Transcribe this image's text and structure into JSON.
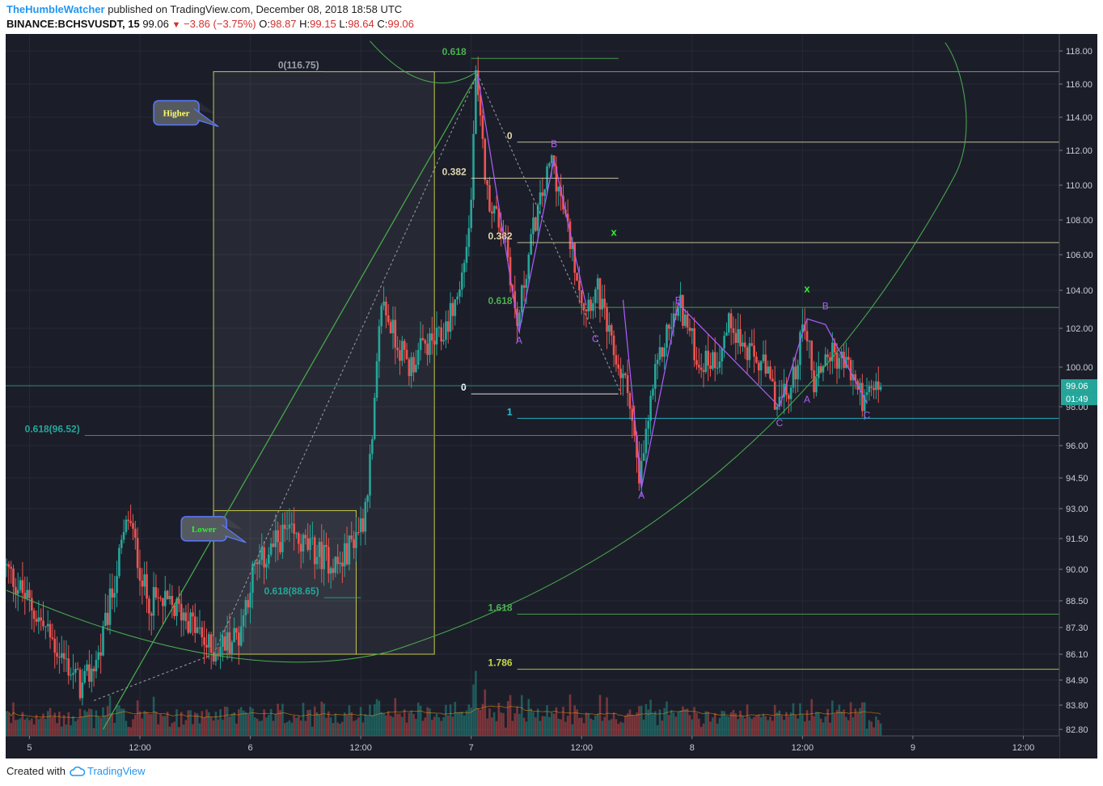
{
  "header": {
    "author": "TheHumbleWatcher",
    "published_text": "published on TradingView.com, December 08, 2018 18:58 UTC",
    "symbol": "BINANCE:BCHSVUSDT, 15",
    "last": "99.06",
    "change": "−3.86 (−3.75%)",
    "o_label": "O:",
    "o": "98.87",
    "h_label": "H:",
    "h": "99.15",
    "l_label": "L:",
    "l": "98.64",
    "c_label": "C:",
    "c": "99.06"
  },
  "footer": {
    "created_with": "Created with",
    "brand": "TradingView"
  },
  "chart_data": {
    "type": "candlestick",
    "colors": {
      "up": "#26a69a",
      "down": "#ef5350",
      "background": "#1b1e29",
      "fib_green": "#4caf50",
      "box": "#c8c84a",
      "pattern": "#b15cff"
    },
    "x_ticks": [
      {
        "label": "5",
        "t": -12
      },
      {
        "label": "12:00",
        "t": 0
      },
      {
        "label": "6",
        "t": 12
      },
      {
        "label": "12:00",
        "t": 24
      },
      {
        "label": "7",
        "t": 36
      },
      {
        "label": "12:00",
        "t": 48
      },
      {
        "label": "8",
        "t": 60
      },
      {
        "label": "12:00",
        "t": 72
      },
      {
        "label": "9",
        "t": 84
      },
      {
        "label": "12:00",
        "t": 96
      }
    ],
    "xlim": [
      -14.5,
      100.5
    ],
    "y_ticks": [
      "118.00",
      "116.00",
      "114.00",
      "112.00",
      "110.00",
      "108.00",
      "106.00",
      "104.00",
      "102.00",
      "100.00",
      "98.00",
      "96.00",
      "94.50",
      "93.00",
      "91.50",
      "90.00",
      "88.50",
      "87.30",
      "86.10",
      "84.90",
      "83.80",
      "82.80"
    ],
    "y_tick_values": [
      118,
      116,
      114,
      112,
      110,
      108,
      106,
      104,
      102,
      100,
      98,
      96,
      94.5,
      93,
      91.5,
      90,
      88.5,
      87.3,
      86.1,
      84.9,
      83.8,
      82.8
    ],
    "last_price": {
      "label": "99.06",
      "countdown": "01:49"
    },
    "anchor_points": [
      {
        "t": -14.5,
        "p": 90.2
      },
      {
        "t": -10,
        "p": 87.2
      },
      {
        "t": -6,
        "p": 84.5
      },
      {
        "t": -4,
        "p": 86.3
      },
      {
        "t": -1,
        "p": 92.6
      },
      {
        "t": 1,
        "p": 88.6
      },
      {
        "t": 5,
        "p": 88.0
      },
      {
        "t": 8,
        "p": 86.2
      },
      {
        "t": 11,
        "p": 87.0
      },
      {
        "t": 12.5,
        "p": 89.8
      },
      {
        "t": 16,
        "p": 91.8
      },
      {
        "t": 19,
        "p": 90.9
      },
      {
        "t": 22,
        "p": 90.2
      },
      {
        "t": 24.5,
        "p": 92.5
      },
      {
        "t": 25.5,
        "p": 96.0
      },
      {
        "t": 26.5,
        "p": 103.5
      },
      {
        "t": 28,
        "p": 101.5
      },
      {
        "t": 29.5,
        "p": 100.0
      },
      {
        "t": 31,
        "p": 101.0
      },
      {
        "t": 33,
        "p": 101.5
      },
      {
        "t": 35,
        "p": 104.0
      },
      {
        "t": 36.2,
        "p": 108.2
      },
      {
        "t": 36.7,
        "p": 116.5
      },
      {
        "t": 38,
        "p": 109.5
      },
      {
        "t": 40,
        "p": 107.0
      },
      {
        "t": 41.2,
        "p": 102.0
      },
      {
        "t": 43,
        "p": 107.5
      },
      {
        "t": 45,
        "p": 111.5
      },
      {
        "t": 46.5,
        "p": 108.0
      },
      {
        "t": 48.5,
        "p": 103.2
      },
      {
        "t": 50,
        "p": 104.0
      },
      {
        "t": 51.5,
        "p": 101.0
      },
      {
        "t": 53.5,
        "p": 98.5
      },
      {
        "t": 54.5,
        "p": 94.0
      },
      {
        "t": 56,
        "p": 99.0
      },
      {
        "t": 57.5,
        "p": 101.8
      },
      {
        "t": 59,
        "p": 103.2
      },
      {
        "t": 61,
        "p": 100.2
      },
      {
        "t": 63,
        "p": 100.5
      },
      {
        "t": 64.5,
        "p": 102.5
      },
      {
        "t": 66,
        "p": 100.8
      },
      {
        "t": 68,
        "p": 100.0
      },
      {
        "t": 69.5,
        "p": 98.2
      },
      {
        "t": 71,
        "p": 98.8
      },
      {
        "t": 72.5,
        "p": 102.5
      },
      {
        "t": 73.5,
        "p": 99.2
      },
      {
        "t": 75,
        "p": 100.8
      },
      {
        "t": 77,
        "p": 100.2
      },
      {
        "t": 79,
        "p": 98.2
      },
      {
        "t": 80.5,
        "p": 99.1
      }
    ],
    "horizontal_levels": [
      {
        "label": "0(116.75)",
        "value": 116.75,
        "color": "#9aa0a6",
        "t1": 20,
        "t2": 100.5
      },
      {
        "label": "0.618(96.52)",
        "value": 96.52,
        "color": "#26a69a",
        "t1": -6,
        "t2": 100.5
      },
      {
        "label": "0.618(88.65)",
        "value": 88.65,
        "color": "#26a69a",
        "t1": 20,
        "t2": 24
      },
      {
        "label": "0.618",
        "value": 117.55,
        "color": "#4caf50",
        "t1": 36,
        "t2": 52
      },
      {
        "label": "0.382",
        "value": 110.4,
        "color": "#e0d8b0",
        "t1": 36,
        "t2": 52
      },
      {
        "label": "0",
        "value": 98.65,
        "color": "#ffffff",
        "t1": 36,
        "t2": 52
      },
      {
        "label": "0",
        "value": 112.5,
        "color": "#e0d8b0",
        "t1": 41,
        "t2": 100.5
      },
      {
        "label": "0.382",
        "value": 106.7,
        "color": "#e0d8b0",
        "t1": 41,
        "t2": 100.5
      },
      {
        "label": "0.618",
        "value": 103.1,
        "color": "#4caf50",
        "t1": 41,
        "t2": 100.5
      },
      {
        "label": "1",
        "value": 97.4,
        "color": "#26c6da",
        "t1": 41,
        "t2": 100.5
      },
      {
        "label": "1.618",
        "value": 87.9,
        "color": "#4caf50",
        "t1": 41,
        "t2": 100.5
      },
      {
        "label": "1.786",
        "value": 85.4,
        "color": "#c8d84a",
        "t1": 41,
        "t2": 100.5
      }
    ],
    "boxes": [
      {
        "t1": 8,
        "t2": 32,
        "p1": 116.75,
        "p2": 86.1
      },
      {
        "t1": 8,
        "t2": 23.5,
        "p1": 92.9,
        "p2": 86.1
      }
    ],
    "callouts": [
      {
        "text": "Higher",
        "color": "#ffff66",
        "t": 1.5,
        "p": 115.0
      },
      {
        "text": "Lower",
        "color": "#33ee33",
        "t": 4.5,
        "p": 92.6
      }
    ],
    "wave_labels": [
      {
        "text": "A",
        "t": 41.2,
        "p": 101.2
      },
      {
        "text": "B",
        "t": 45,
        "p": 112.2
      },
      {
        "text": "C",
        "t": 49.5,
        "p": 101.3
      },
      {
        "text": "A",
        "t": 54.5,
        "p": 93.5
      },
      {
        "text": "B",
        "t": 58.5,
        "p": 103.3
      },
      {
        "text": "C",
        "t": 69.5,
        "p": 97.0
      },
      {
        "text": "A",
        "t": 72.5,
        "p": 98.2
      },
      {
        "text": "B",
        "t": 74.5,
        "p": 103.0
      },
      {
        "text": "C",
        "t": 79,
        "p": 97.4
      }
    ],
    "x_marks": [
      {
        "text": "x",
        "t": 51.5,
        "p": 107.1
      },
      {
        "text": "x",
        "t": 72.5,
        "p": 103.9
      }
    ]
  }
}
